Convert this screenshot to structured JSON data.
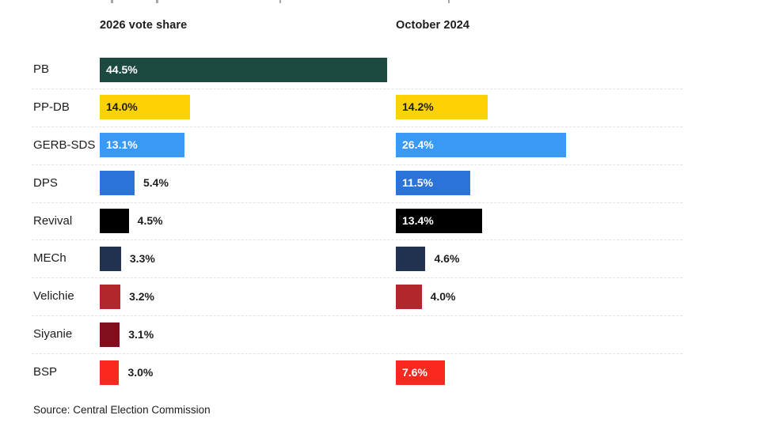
{
  "header": {
    "col_2026": "2026 vote share",
    "col_2024": "October 2024"
  },
  "source": "Source: Central Election Commission",
  "chart_data": {
    "type": "bar",
    "orientation": "horizontal",
    "title": "",
    "xlabel": "",
    "ylabel": "",
    "xlim": [
      0,
      45
    ],
    "grid": false,
    "legend_position": "none",
    "columns": [
      "2026 vote share",
      "October 2024"
    ],
    "categories": [
      "PB",
      "PP-DB",
      "GERB-SDS",
      "DPS",
      "Revival",
      "MECh",
      "Velichie",
      "Siyanie",
      "BSP"
    ],
    "series": [
      {
        "name": "2026 vote share",
        "values": [
          44.5,
          14.0,
          13.1,
          5.4,
          4.5,
          3.3,
          3.2,
          3.1,
          3.0
        ]
      },
      {
        "name": "October 2024",
        "values": [
          null,
          14.2,
          26.4,
          11.5,
          13.4,
          4.6,
          4.0,
          null,
          7.6
        ]
      }
    ],
    "rows": [
      {
        "party": "PB",
        "color": "#1c4a40",
        "v2026": 44.5,
        "label2026": "44.5%",
        "v2024": null,
        "label2024": null
      },
      {
        "party": "PP-DB",
        "color": "#fdd205",
        "v2026": 14.0,
        "label2026": "14.0%",
        "v2024": 14.2,
        "label2024": "14.2%"
      },
      {
        "party": "GERB-SDS",
        "color": "#3b99f6",
        "v2026": 13.1,
        "label2026": "13.1%",
        "v2024": 26.4,
        "label2024": "26.4%"
      },
      {
        "party": "DPS",
        "color": "#2b73d9",
        "v2026": 5.4,
        "label2026": "5.4%",
        "v2024": 11.5,
        "label2024": "11.5%"
      },
      {
        "party": "Revival",
        "color": "#000000",
        "v2026": 4.5,
        "label2026": "4.5%",
        "v2024": 13.4,
        "label2024": "13.4%"
      },
      {
        "party": "MECh",
        "color": "#213150",
        "v2026": 3.3,
        "label2026": "3.3%",
        "v2024": 4.6,
        "label2024": "4.6%"
      },
      {
        "party": "Velichie",
        "color": "#b2272c",
        "v2026": 3.2,
        "label2026": "3.2%",
        "v2024": 4.0,
        "label2024": "4.0%"
      },
      {
        "party": "Siyanie",
        "color": "#810e1a",
        "v2026": 3.1,
        "label2026": "3.1%",
        "v2024": null,
        "label2024": null
      },
      {
        "party": "BSP",
        "color": "#fb2820",
        "v2026": 3.0,
        "label2026": "3.0%",
        "v2024": 7.6,
        "label2024": "7.6%"
      }
    ]
  }
}
